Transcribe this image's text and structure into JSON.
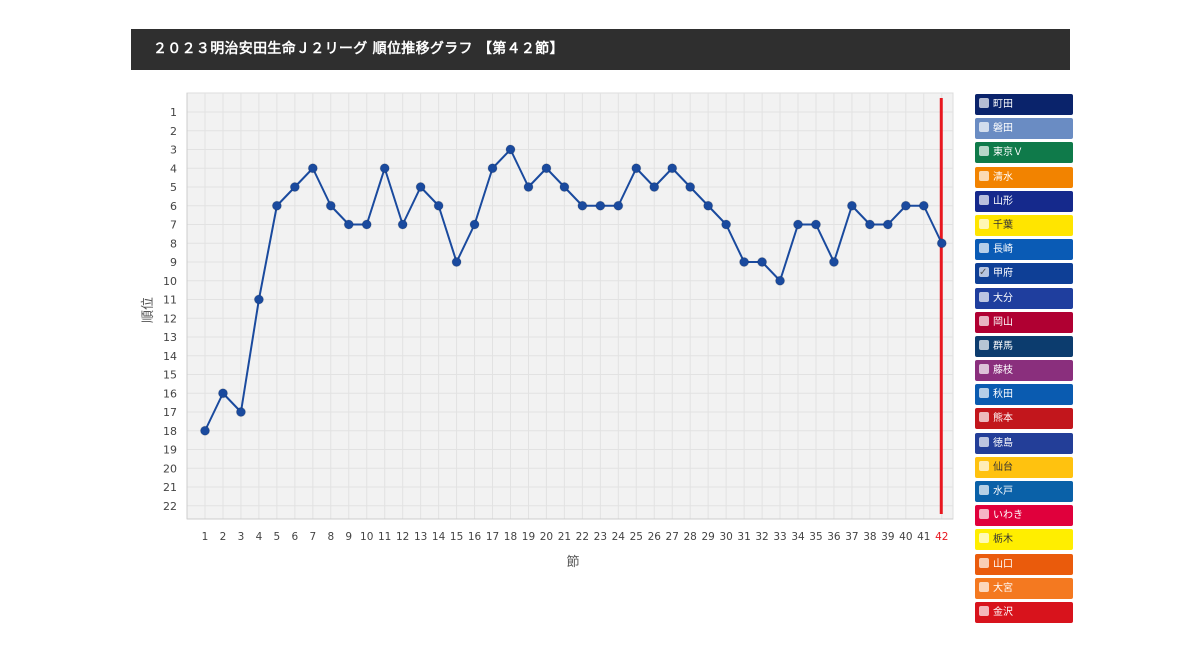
{
  "page": {
    "title": "２０２３明治安田生命Ｊ２リーグ 順位推移グラフ 【第４２節】"
  },
  "chart_data": {
    "type": "line",
    "xlabel": "節",
    "ylabel": "順位",
    "x": [
      1,
      2,
      3,
      4,
      5,
      6,
      7,
      8,
      9,
      10,
      11,
      12,
      13,
      14,
      15,
      16,
      17,
      18,
      19,
      20,
      21,
      22,
      23,
      24,
      25,
      26,
      27,
      28,
      29,
      30,
      31,
      32,
      33,
      34,
      35,
      36,
      37,
      38,
      39,
      40,
      41,
      42
    ],
    "ylim": [
      1,
      22
    ],
    "y_inverted": true,
    "grid": true,
    "highlight_x": 42,
    "highlight_color": "#e8171f",
    "series": [
      {
        "name": "甲府",
        "color": "#1a4a9e",
        "values": [
          18,
          16,
          17,
          11,
          6,
          5,
          4,
          6,
          7,
          7,
          4,
          7,
          5,
          6,
          9,
          7,
          4,
          3,
          5,
          4,
          5,
          6,
          6,
          6,
          4,
          5,
          4,
          5,
          6,
          7,
          9,
          9,
          10,
          7,
          7,
          9,
          6,
          7,
          7,
          6,
          6,
          8
        ]
      }
    ],
    "legend_placement": "right"
  },
  "legend": [
    {
      "name": "町田",
      "color": "#0a236b",
      "checked": false
    },
    {
      "name": "磐田",
      "color": "#6a8cc3",
      "checked": false
    },
    {
      "name": "東京Ｖ",
      "color": "#0f7a4a",
      "checked": false
    },
    {
      "name": "清水",
      "color": "#f28300",
      "checked": false
    },
    {
      "name": "山形",
      "color": "#15298c",
      "checked": false
    },
    {
      "name": "千葉",
      "color": "#ffe500",
      "checked": false
    },
    {
      "name": "長崎",
      "color": "#0a5bb5",
      "checked": false
    },
    {
      "name": "甲府",
      "color": "#0e3f96",
      "checked": true
    },
    {
      "name": "大分",
      "color": "#1f3e9e",
      "checked": false
    },
    {
      "name": "岡山",
      "color": "#b00032",
      "checked": false
    },
    {
      "name": "群馬",
      "color": "#0c3c6e",
      "checked": false
    },
    {
      "name": "藤枝",
      "color": "#8a2f7d",
      "checked": false
    },
    {
      "name": "秋田",
      "color": "#0a5bb0",
      "checked": false
    },
    {
      "name": "熊本",
      "color": "#c2161c",
      "checked": false
    },
    {
      "name": "徳島",
      "color": "#233e98",
      "checked": false
    },
    {
      "name": "仙台",
      "color": "#ffc20f",
      "checked": false
    },
    {
      "name": "水戸",
      "color": "#0a61a8",
      "checked": false
    },
    {
      "name": "いわき",
      "color": "#e0003c",
      "checked": false
    },
    {
      "name": "栃木",
      "color": "#ffee00",
      "checked": false
    },
    {
      "name": "山口",
      "color": "#ea5b0c",
      "checked": false
    },
    {
      "name": "大宮",
      "color": "#f47920",
      "checked": false
    },
    {
      "name": "金沢",
      "color": "#d8131c",
      "checked": false
    }
  ]
}
